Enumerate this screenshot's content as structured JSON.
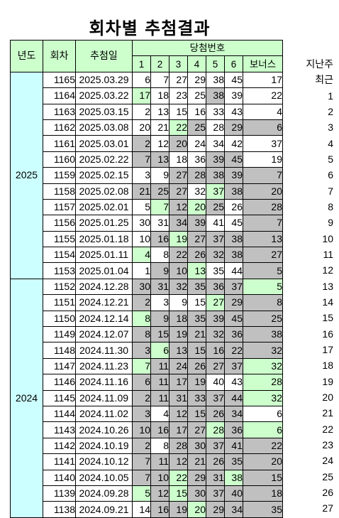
{
  "title": "회차별 추첨결과",
  "headers": {
    "year": "년도",
    "round": "회차",
    "date": "추첨일",
    "winning": "당첨번호",
    "balls": [
      "1",
      "2",
      "3",
      "4",
      "5",
      "6"
    ],
    "bonus": "보너스",
    "weeks_ago": "지난주",
    "recent": "최근"
  },
  "year_groups": [
    {
      "year": "2025",
      "rows": 13
    },
    {
      "year": "2024",
      "rows": 15
    }
  ],
  "rows": [
    {
      "round": "1165",
      "date": "2025.03.29",
      "nums": [
        6,
        7,
        27,
        29,
        38,
        45
      ],
      "bonus": 17,
      "ago": "",
      "hl": [
        "",
        "",
        "",
        "",
        "",
        "",
        ""
      ]
    },
    {
      "round": "1164",
      "date": "2025.03.22",
      "nums": [
        17,
        18,
        23,
        25,
        38,
        39
      ],
      "bonus": 22,
      "ago": "1",
      "hl": [
        "m",
        "",
        "",
        "",
        "g",
        "",
        ""
      ]
    },
    {
      "round": "1163",
      "date": "2025.03.15",
      "nums": [
        2,
        13,
        15,
        16,
        33,
        43
      ],
      "bonus": 4,
      "ago": "2",
      "hl": [
        "",
        "",
        "",
        "",
        "",
        "",
        ""
      ]
    },
    {
      "round": "1162",
      "date": "2025.03.08",
      "nums": [
        20,
        21,
        22,
        25,
        28,
        29
      ],
      "bonus": 6,
      "ago": "3",
      "hl": [
        "",
        "",
        "m",
        "g",
        "",
        "g",
        "g"
      ]
    },
    {
      "round": "1161",
      "date": "2025.03.01",
      "nums": [
        2,
        12,
        20,
        24,
        34,
        42
      ],
      "bonus": 37,
      "ago": "4",
      "hl": [
        "g",
        "",
        "g",
        "",
        "",
        "",
        ""
      ]
    },
    {
      "round": "1160",
      "date": "2025.02.22",
      "nums": [
        7,
        13,
        18,
        36,
        39,
        45
      ],
      "bonus": 19,
      "ago": "5",
      "hl": [
        "g",
        "g",
        "",
        "",
        "g",
        "g",
        ""
      ]
    },
    {
      "round": "1159",
      "date": "2025.02.15",
      "nums": [
        3,
        9,
        27,
        28,
        38,
        39
      ],
      "bonus": 7,
      "ago": "6",
      "hl": [
        "",
        "",
        "g",
        "g",
        "g",
        "g",
        "g"
      ]
    },
    {
      "round": "1158",
      "date": "2025.02.08",
      "nums": [
        21,
        25,
        27,
        32,
        37,
        38
      ],
      "bonus": 20,
      "ago": "7",
      "hl": [
        "g",
        "g",
        "g",
        "",
        "m",
        "g",
        "g"
      ]
    },
    {
      "round": "1157",
      "date": "2025.02.01",
      "nums": [
        5,
        7,
        12,
        20,
        25,
        26
      ],
      "bonus": 28,
      "ago": "8",
      "hl": [
        "",
        "m",
        "g",
        "m",
        "g",
        "",
        "g"
      ]
    },
    {
      "round": "1156",
      "date": "2025.01.25",
      "nums": [
        30,
        31,
        34,
        39,
        41,
        45
      ],
      "bonus": 7,
      "ago": "9",
      "hl": [
        "",
        "",
        "g",
        "g",
        "",
        "",
        "g"
      ]
    },
    {
      "round": "1155",
      "date": "2025.01.18",
      "nums": [
        10,
        16,
        19,
        27,
        37,
        38
      ],
      "bonus": 13,
      "ago": "10",
      "hl": [
        "",
        "g",
        "m",
        "g",
        "g",
        "g",
        "g"
      ]
    },
    {
      "round": "1154",
      "date": "2025.01.11",
      "nums": [
        4,
        8,
        22,
        26,
        32,
        38
      ],
      "bonus": 27,
      "ago": "11",
      "hl": [
        "m",
        "",
        "g",
        "g",
        "g",
        "g",
        "g"
      ]
    },
    {
      "round": "1153",
      "date": "2025.01.04",
      "nums": [
        1,
        9,
        10,
        13,
        35,
        44
      ],
      "bonus": 5,
      "ago": "12",
      "hl": [
        "",
        "g",
        "g",
        "m",
        "",
        "",
        "g"
      ]
    },
    {
      "round": "1152",
      "date": "2024.12.28",
      "nums": [
        30,
        31,
        32,
        35,
        36,
        37
      ],
      "bonus": 5,
      "ago": "13",
      "hl": [
        "g",
        "g",
        "g",
        "g",
        "g",
        "g",
        "m"
      ]
    },
    {
      "round": "1151",
      "date": "2024.12.21",
      "nums": [
        2,
        3,
        9,
        15,
        27,
        29
      ],
      "bonus": 8,
      "ago": "14",
      "hl": [
        "g",
        "",
        "",
        "",
        "m",
        "g",
        "g"
      ]
    },
    {
      "round": "1150",
      "date": "2024.12.14",
      "nums": [
        8,
        9,
        18,
        35,
        39,
        45
      ],
      "bonus": 25,
      "ago": "15",
      "hl": [
        "m",
        "g",
        "g",
        "g",
        "g",
        "g",
        "g"
      ]
    },
    {
      "round": "1149",
      "date": "2024.12.07",
      "nums": [
        8,
        15,
        19,
        21,
        32,
        36
      ],
      "bonus": 38,
      "ago": "16",
      "hl": [
        "g",
        "g",
        "g",
        "g",
        "g",
        "g",
        "g"
      ]
    },
    {
      "round": "1148",
      "date": "2024.11.30",
      "nums": [
        3,
        6,
        13,
        15,
        16,
        22
      ],
      "bonus": 32,
      "ago": "17",
      "hl": [
        "g",
        "m",
        "g",
        "g",
        "g",
        "g",
        "g"
      ]
    },
    {
      "round": "1147",
      "date": "2024.11.23",
      "nums": [
        7,
        11,
        24,
        26,
        27,
        37
      ],
      "bonus": 32,
      "ago": "18",
      "hl": [
        "m",
        "g",
        "g",
        "g",
        "g",
        "g",
        "m"
      ]
    },
    {
      "round": "1146",
      "date": "2024.11.16",
      "nums": [
        6,
        11,
        17,
        19,
        40,
        43
      ],
      "bonus": 28,
      "ago": "19",
      "hl": [
        "g",
        "g",
        "g",
        "g",
        "",
        "",
        "m"
      ]
    },
    {
      "round": "1145",
      "date": "2024.11.09",
      "nums": [
        2,
        11,
        31,
        33,
        37,
        44
      ],
      "bonus": 32,
      "ago": "20",
      "hl": [
        "g",
        "g",
        "g",
        "g",
        "g",
        "g",
        "m"
      ]
    },
    {
      "round": "1144",
      "date": "2024.11.02",
      "nums": [
        3,
        4,
        12,
        15,
        26,
        34
      ],
      "bonus": 6,
      "ago": "21",
      "hl": [
        "g",
        "",
        "g",
        "g",
        "g",
        "g",
        ""
      ]
    },
    {
      "round": "1143",
      "date": "2024.10.26",
      "nums": [
        10,
        16,
        17,
        27,
        28,
        36
      ],
      "bonus": 6,
      "ago": "22",
      "hl": [
        "g",
        "g",
        "g",
        "g",
        "m",
        "g",
        "m"
      ]
    },
    {
      "round": "1142",
      "date": "2024.10.19",
      "nums": [
        2,
        8,
        28,
        30,
        37,
        41
      ],
      "bonus": 22,
      "ago": "23",
      "hl": [
        "g",
        "",
        "g",
        "g",
        "g",
        "g",
        "g"
      ]
    },
    {
      "round": "1141",
      "date": "2024.10.12",
      "nums": [
        7,
        11,
        12,
        21,
        26,
        35
      ],
      "bonus": 20,
      "ago": "24",
      "hl": [
        "g",
        "g",
        "g",
        "g",
        "g",
        "g",
        "g"
      ]
    },
    {
      "round": "1140",
      "date": "2024.10.05",
      "nums": [
        7,
        10,
        22,
        29,
        31,
        38
      ],
      "bonus": 15,
      "ago": "25",
      "hl": [
        "g",
        "g",
        "m",
        "g",
        "g",
        "m",
        "g"
      ]
    },
    {
      "round": "1139",
      "date": "2024.09.28",
      "nums": [
        5,
        12,
        15,
        30,
        37,
        40
      ],
      "bonus": 18,
      "ago": "26",
      "hl": [
        "m",
        "g",
        "m",
        "g",
        "g",
        "g",
        "g"
      ]
    },
    {
      "round": "1138",
      "date": "2024.09.21",
      "nums": [
        14,
        16,
        19,
        20,
        29,
        34
      ],
      "bonus": 35,
      "ago": "27",
      "hl": [
        "",
        "g",
        "g",
        "m",
        "g",
        "g",
        "g"
      ]
    }
  ],
  "colors": {
    "header_green": "#ccffcc",
    "year_cyan": "#ccffff",
    "gray": "#c0c0c0",
    "match_green": "#ccffcc"
  }
}
